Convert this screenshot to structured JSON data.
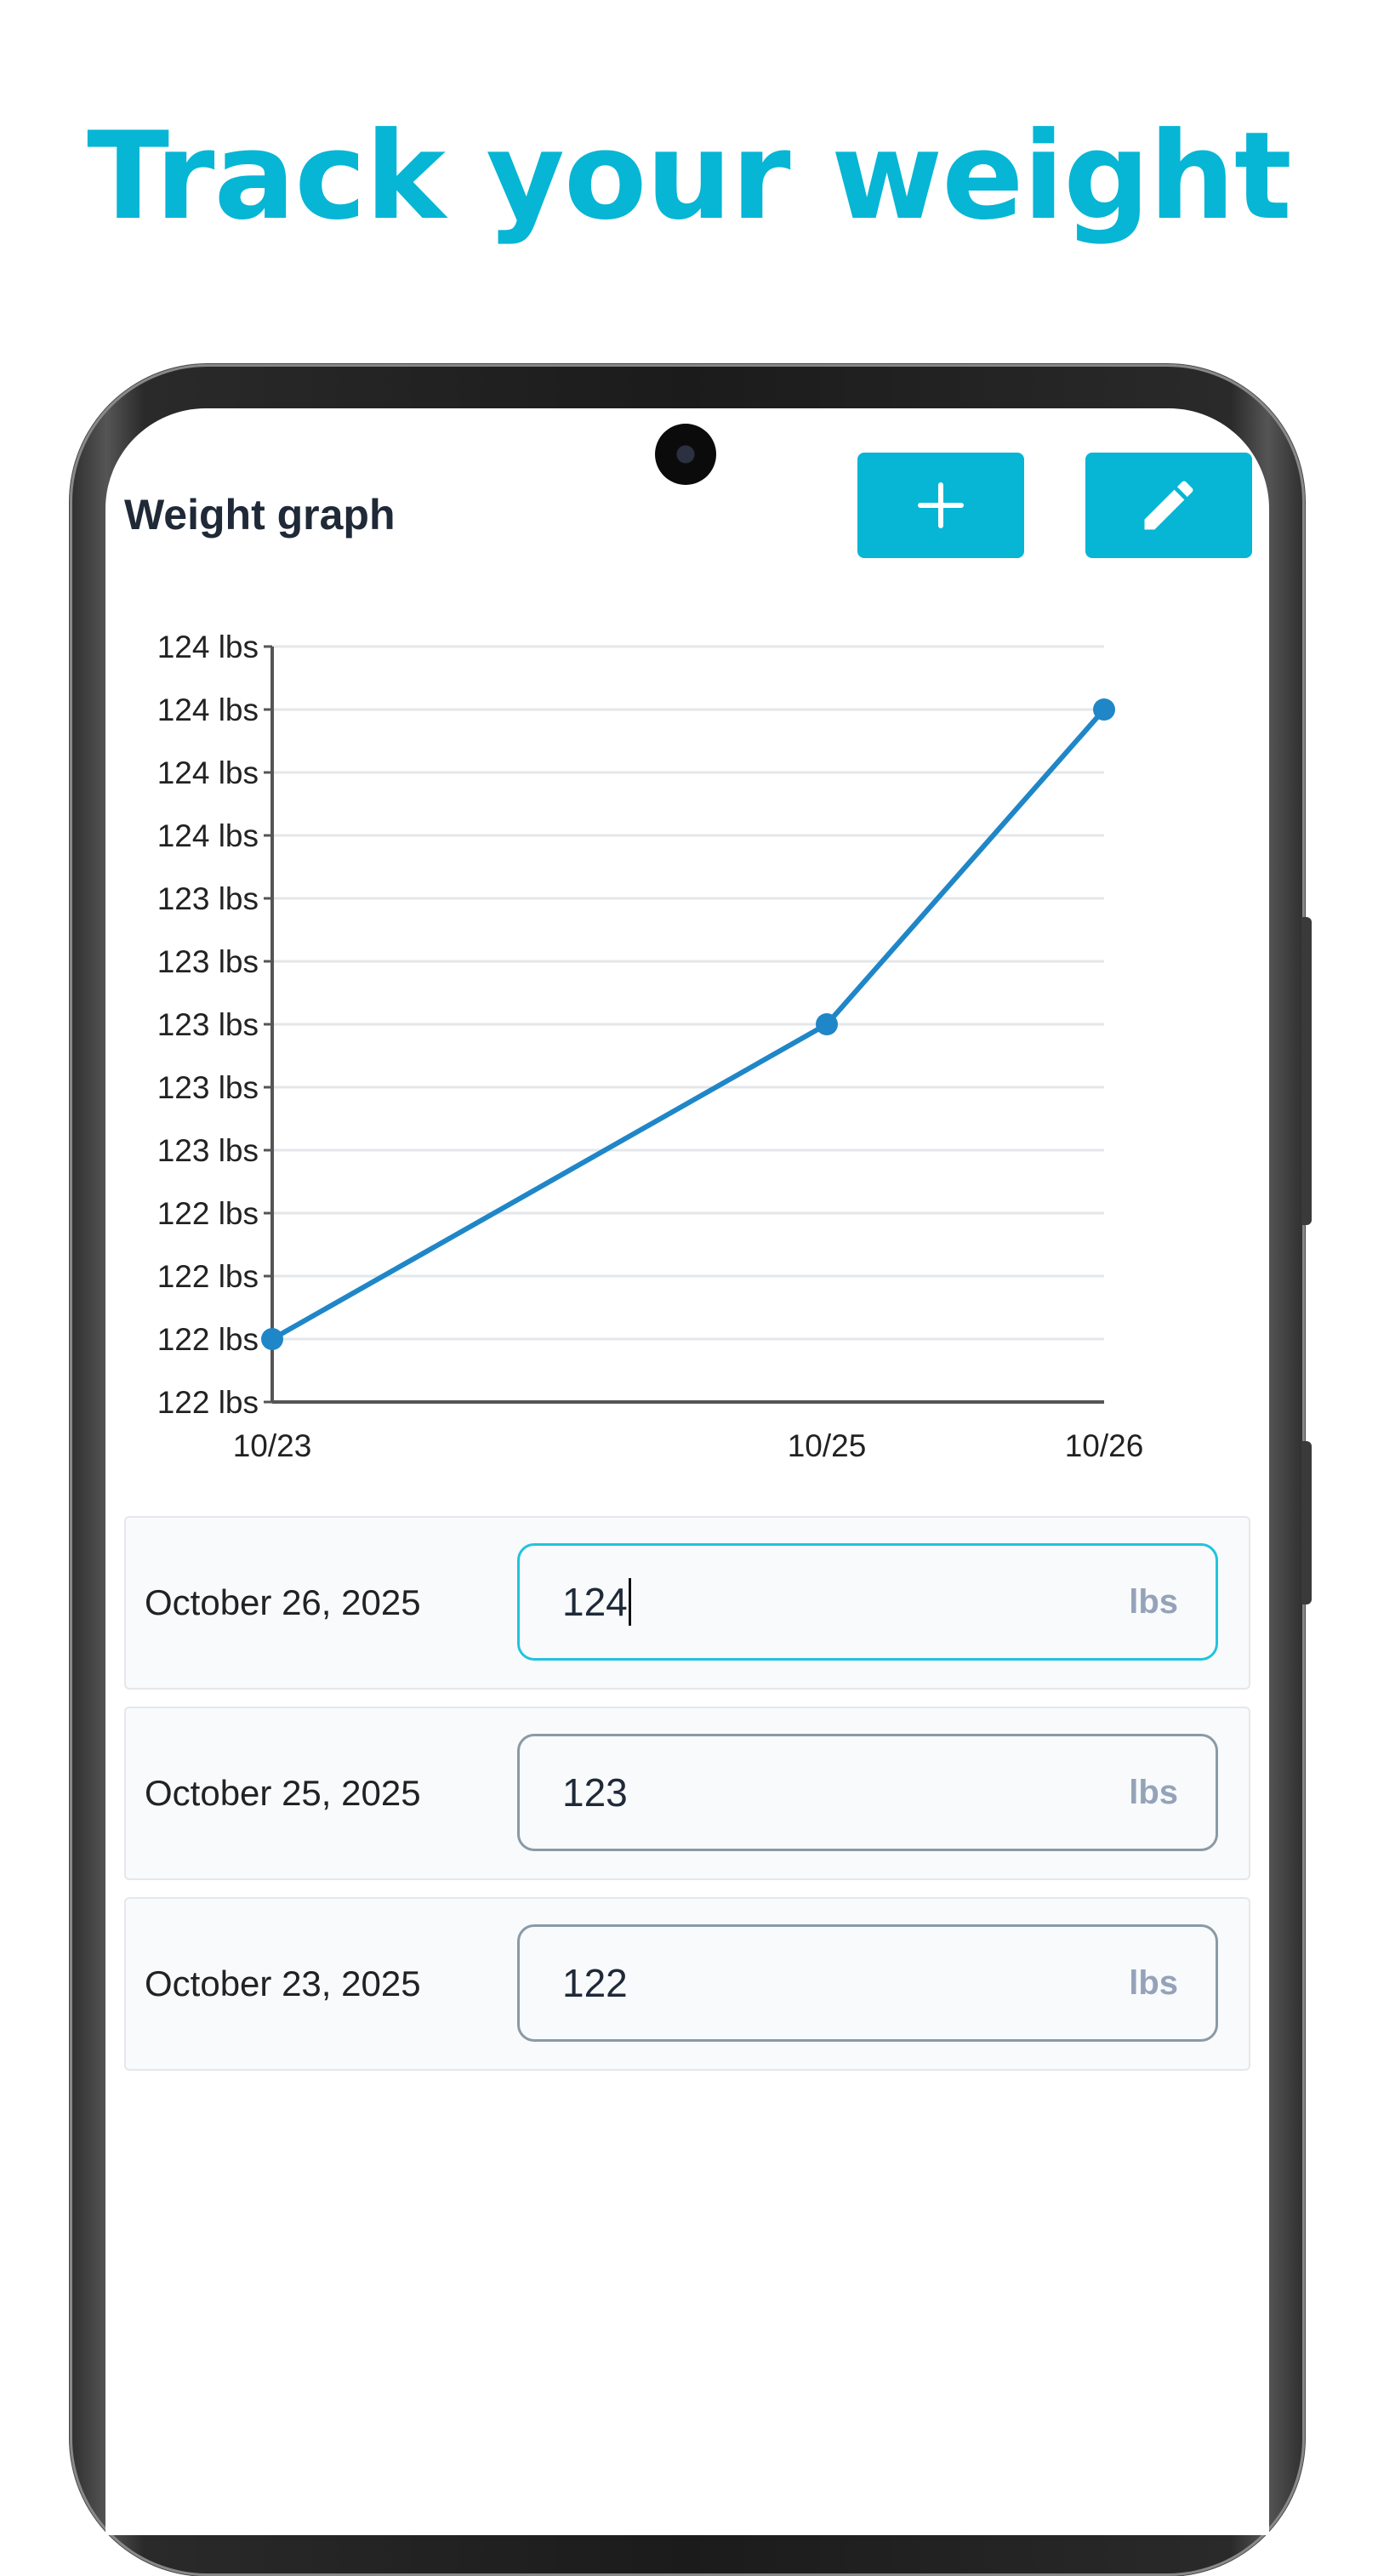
{
  "promo": {
    "title": "Track your weight"
  },
  "header": {
    "title": "Weight graph",
    "add_icon": "plus-icon",
    "edit_icon": "pencil-icon"
  },
  "colors": {
    "accent": "#06b6d4",
    "line": "#1f86c8"
  },
  "chart_data": {
    "type": "line",
    "x": [
      "10/23",
      "10/25",
      "10/26"
    ],
    "x_days": [
      23,
      25,
      26
    ],
    "xlim": [
      23,
      26
    ],
    "y_tick_labels": [
      "124 lbs",
      "124 lbs",
      "124 lbs",
      "124 lbs",
      "123 lbs",
      "123 lbs",
      "123 lbs",
      "123 lbs",
      "123 lbs",
      "122 lbs",
      "122 lbs",
      "122 lbs",
      "122 lbs"
    ],
    "series": [
      {
        "values": [
          122,
          123,
          124
        ]
      }
    ],
    "ylim": [
      121.8,
      124.2
    ],
    "grid": true,
    "legend": "none"
  },
  "entries": [
    {
      "date": "October 26, 2025",
      "value": "124",
      "unit": "lbs",
      "focused": true
    },
    {
      "date": "October 25, 2025",
      "value": "123",
      "unit": "lbs",
      "focused": false
    },
    {
      "date": "October 23, 2025",
      "value": "122",
      "unit": "lbs",
      "focused": false
    }
  ]
}
